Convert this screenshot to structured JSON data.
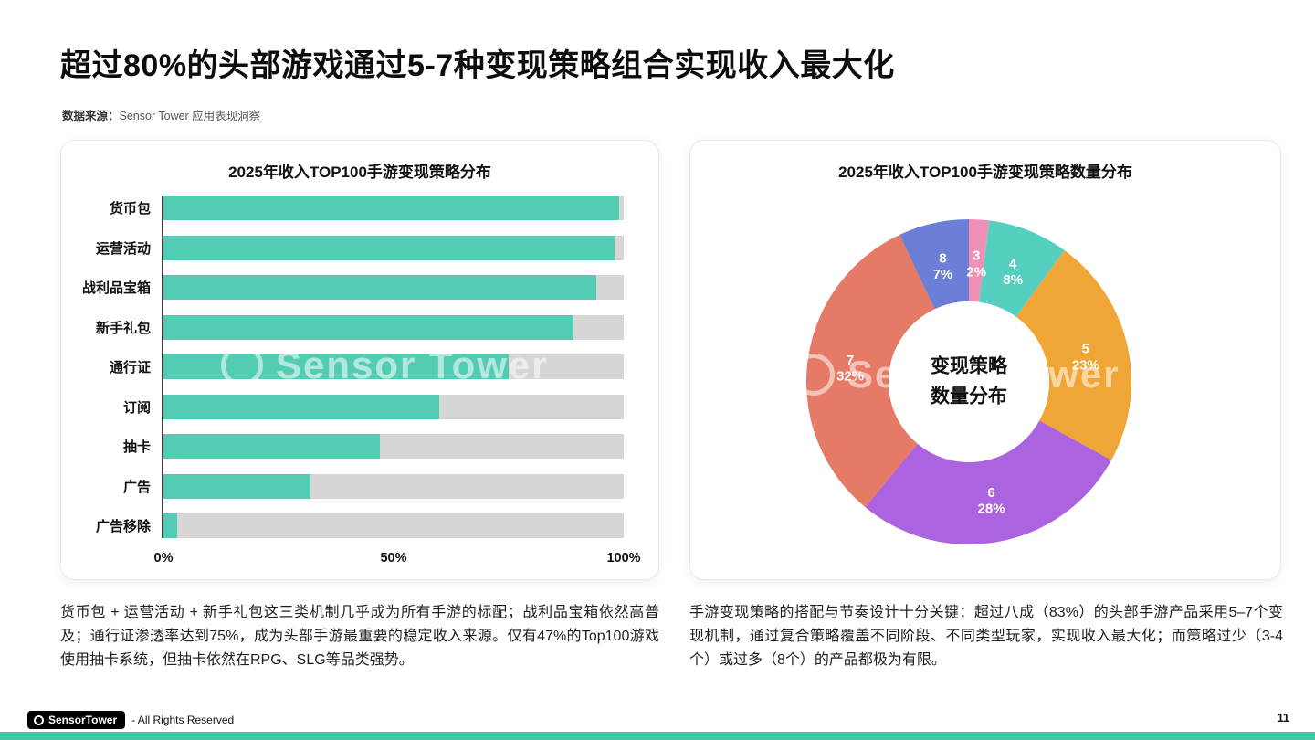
{
  "page": {
    "title": "超过80%的头部游戏通过5-7种变现策略组合实现收入最大化",
    "source_label": "数据来源：",
    "source_value": "Sensor Tower 应用表现洞察",
    "watermark": "Sensor Tower",
    "footer": {
      "logo_text": "SensorTower",
      "rights": "- All Rights Reserved",
      "page_number": "11"
    },
    "accent_color": "#3EC9A7"
  },
  "left_card": {
    "note": "货币包 + 运营活动 + 新手礼包这三类机制几乎成为所有手游的标配；战利品宝箱依然高普及；通行证渗透率达到75%，成为头部手游最重要的稳定收入来源。仅有47%的Top100游戏使用抽卡系统，但抽卡依然在RPG、SLG等品类强势。"
  },
  "right_card": {
    "center_label_line1": "变现策略",
    "center_label_line2": "数量分布",
    "note": "手游变现策略的搭配与节奏设计十分关键：超过八成（83%）的头部手游产品采用5–7个变现机制，通过复合策略覆盖不同阶段、不同类型玩家，实现收入最大化；而策略过少（3-4个）或过多（8个）的产品都极为有限。"
  },
  "chart_data": [
    {
      "type": "bar",
      "orientation": "horizontal",
      "title": "2025年收入TOP100手游变现策略分布",
      "categories": [
        "货币包",
        "运营活动",
        "战利品宝箱",
        "新手礼包",
        "通行证",
        "订阅",
        "抽卡",
        "广告",
        "广告移除"
      ],
      "values": [
        99,
        98,
        94,
        89,
        75,
        60,
        47,
        32,
        3
      ],
      "unit": "%",
      "xlim": [
        0,
        100
      ],
      "x_ticks": [
        "0%",
        "50%",
        "100%"
      ],
      "bar_color": "#53CCB4",
      "track_color": "#D6D6D6",
      "grid": false
    },
    {
      "type": "pie",
      "donut": true,
      "title": "2025年收入TOP100手游变现策略数量分布",
      "center_label": "变现策略 数量分布",
      "start_angle_deg": 0,
      "segments": [
        {
          "label": "3",
          "value": 2,
          "color": "#F190B7"
        },
        {
          "label": "4",
          "value": 8,
          "color": "#55CFC0"
        },
        {
          "label": "5",
          "value": 23,
          "color": "#F0A637"
        },
        {
          "label": "6",
          "value": 28,
          "color": "#AC63E0"
        },
        {
          "label": "7",
          "value": 32,
          "color": "#E57A67"
        },
        {
          "label": "8",
          "value": 7,
          "color": "#6B7FD6"
        }
      ]
    }
  ]
}
